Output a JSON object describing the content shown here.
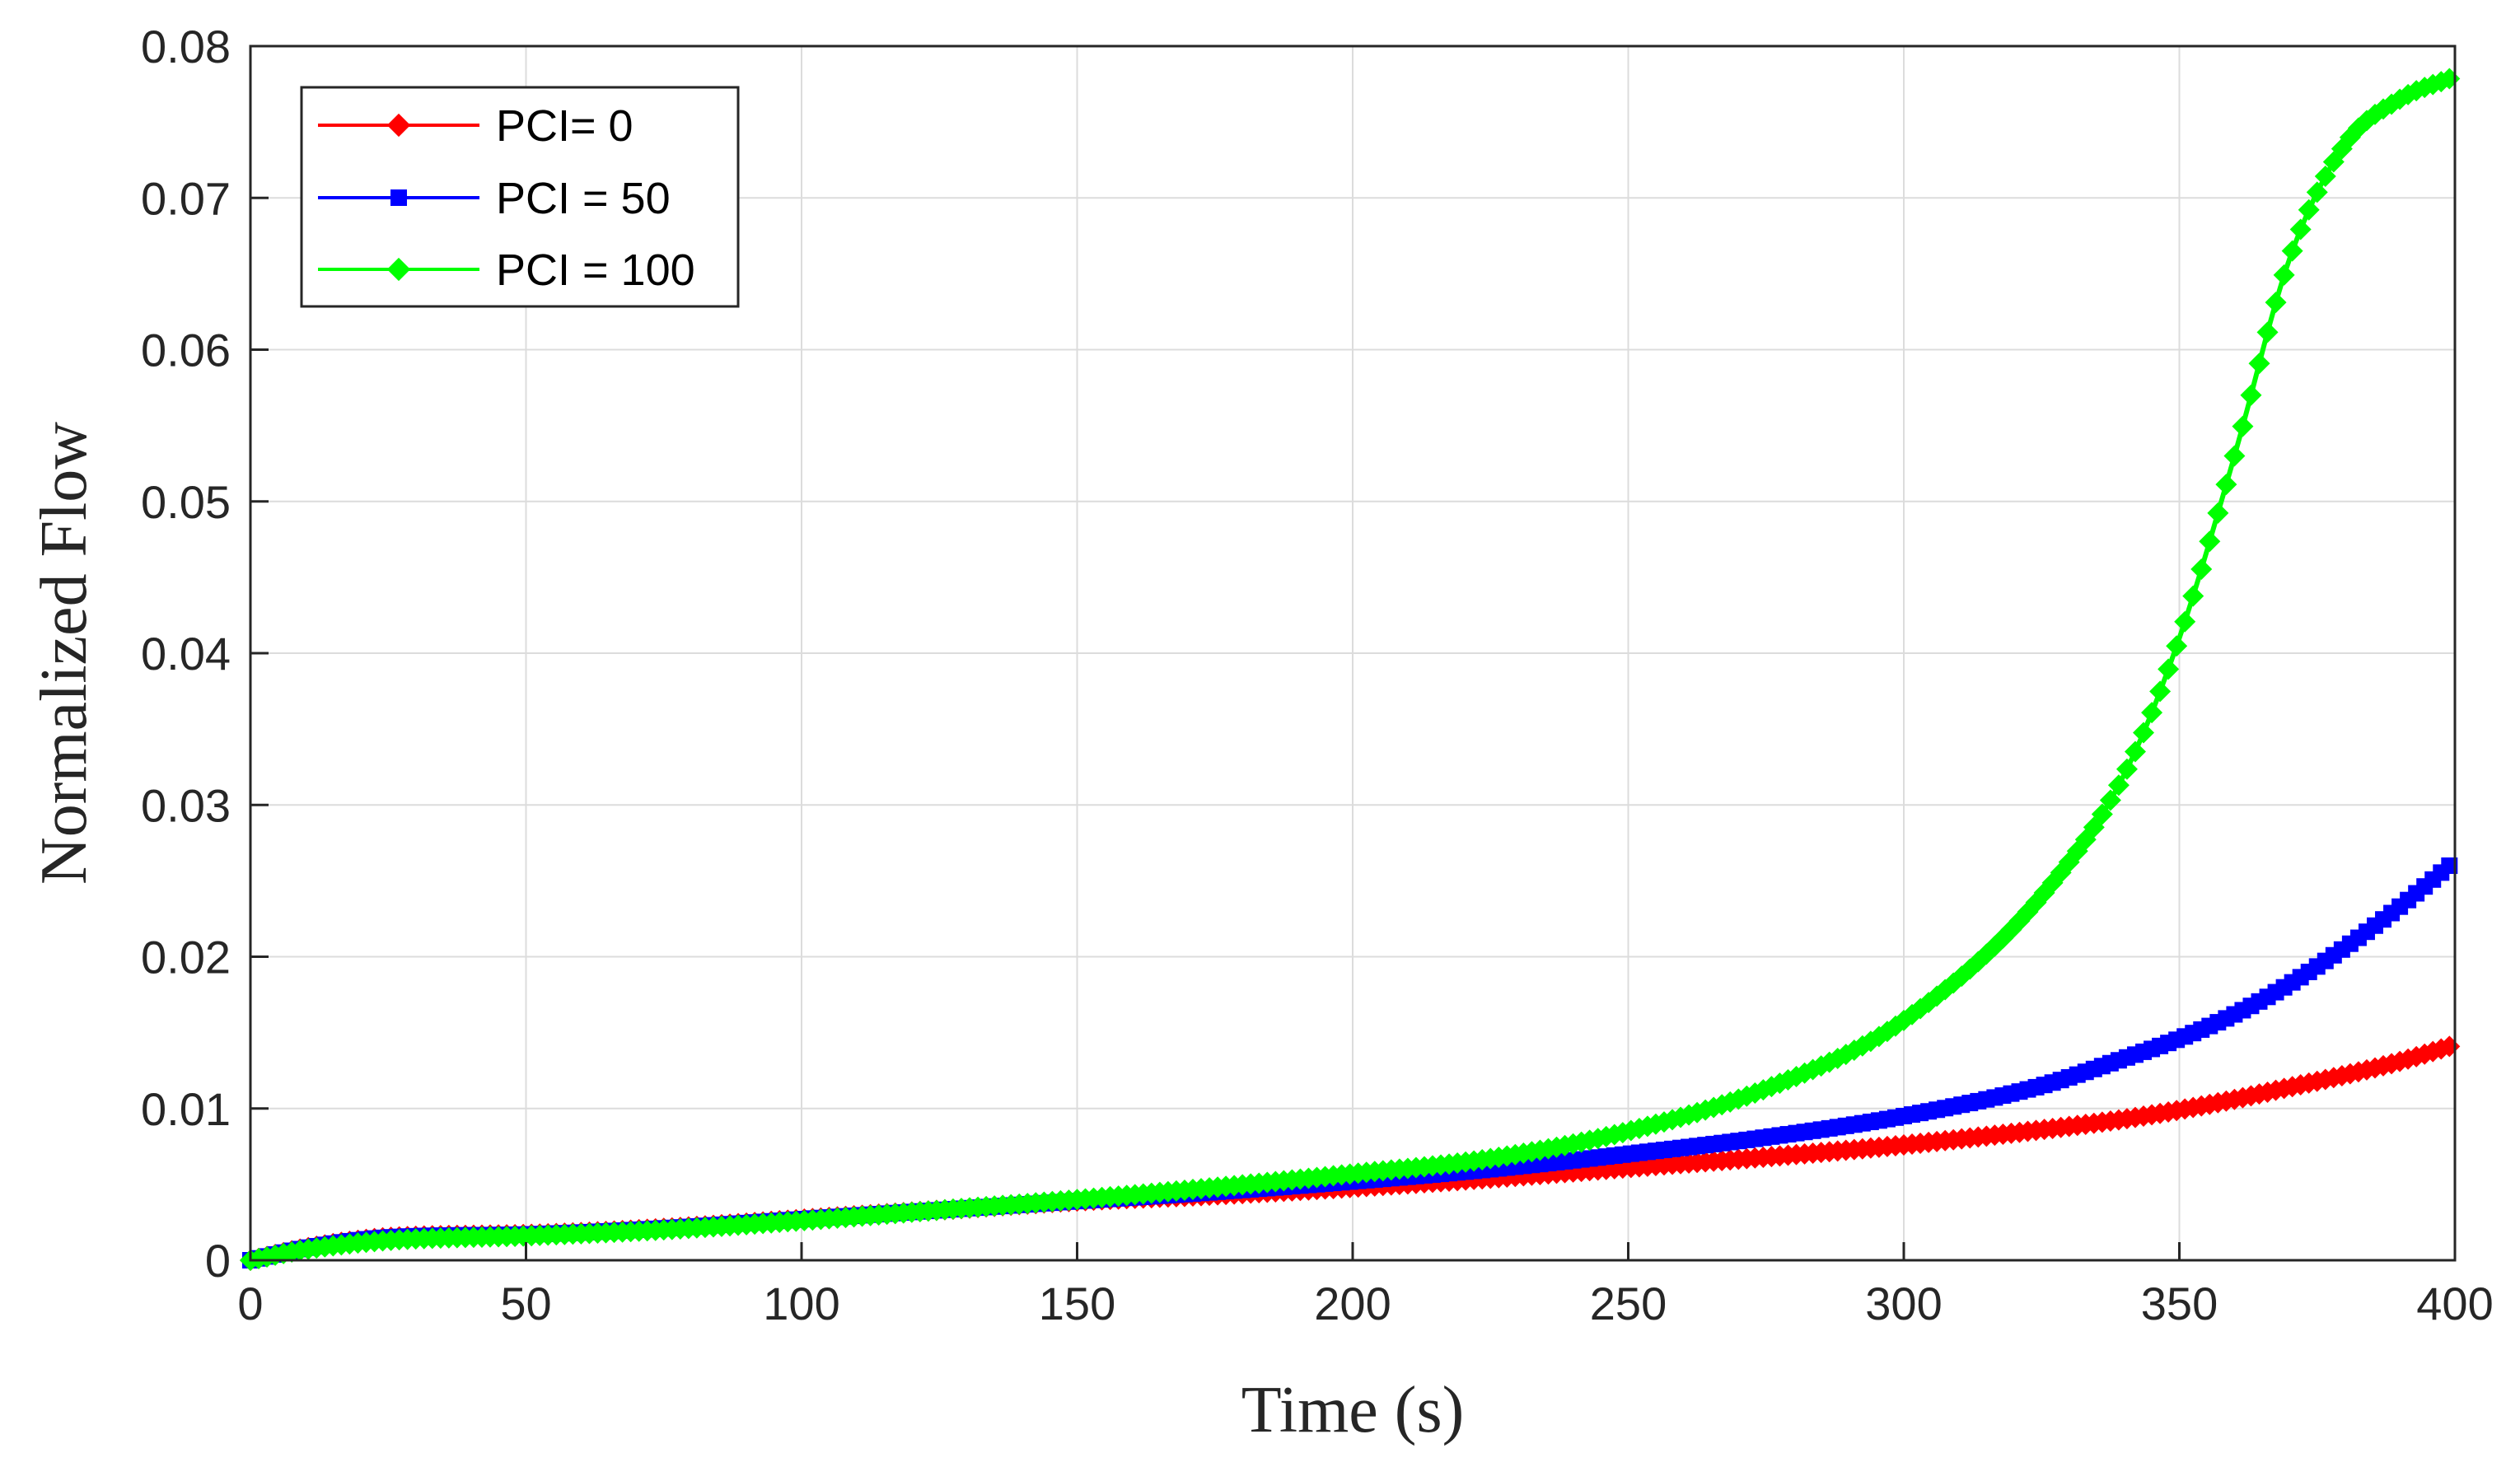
{
  "chart_data": {
    "type": "line",
    "title": "",
    "xlabel": "Time (s)",
    "ylabel": "Normalized Flow",
    "xlim": [
      0,
      400
    ],
    "ylim": [
      0,
      0.08
    ],
    "xticks": [
      0,
      50,
      100,
      150,
      200,
      250,
      300,
      350,
      400
    ],
    "xtick_labels": [
      "0",
      "50",
      "100",
      "150",
      "200",
      "250",
      "300",
      "350",
      "400"
    ],
    "yticks": [
      0,
      0.01,
      0.02,
      0.03,
      0.04,
      0.05,
      0.06,
      0.07,
      0.08
    ],
    "ytick_labels": [
      "0",
      "0.01",
      "0.02",
      "0.03",
      "0.04",
      "0.05",
      "0.06",
      "0.07",
      "0.08"
    ],
    "grid": true,
    "legend_position": "top-left",
    "x": [
      0,
      10,
      25,
      50,
      75,
      100,
      125,
      150,
      175,
      200,
      225,
      250,
      275,
      300,
      325,
      340,
      350,
      360,
      370,
      380,
      390,
      400
    ],
    "series": [
      {
        "name": "PCI= 0",
        "color": "#ff0000",
        "marker": "diamond",
        "values": [
          0,
          0.0008,
          0.0015,
          0.0017,
          0.0021,
          0.0027,
          0.0033,
          0.0039,
          0.0043,
          0.0048,
          0.0054,
          0.0061,
          0.0068,
          0.0076,
          0.0086,
          0.0093,
          0.0099,
          0.0106,
          0.0114,
          0.0122,
          0.0131,
          0.0142
        ]
      },
      {
        "name": "PCI = 50",
        "color": "#0000ff",
        "marker": "square",
        "values": [
          0,
          0.0008,
          0.0015,
          0.0017,
          0.0021,
          0.0027,
          0.0033,
          0.0039,
          0.0045,
          0.0052,
          0.006,
          0.007,
          0.0081,
          0.0095,
          0.0115,
          0.0133,
          0.0146,
          0.0162,
          0.0182,
          0.0206,
          0.0233,
          0.0263
        ]
      },
      {
        "name": "PCI = 100",
        "color": "#00ff00",
        "marker": "diamond",
        "values": [
          0,
          0.0007,
          0.0013,
          0.0016,
          0.002,
          0.0026,
          0.0033,
          0.004,
          0.0048,
          0.0057,
          0.0067,
          0.0085,
          0.0113,
          0.0158,
          0.024,
          0.032,
          0.041,
          0.053,
          0.066,
          0.0735,
          0.0765,
          0.078
        ]
      }
    ]
  }
}
